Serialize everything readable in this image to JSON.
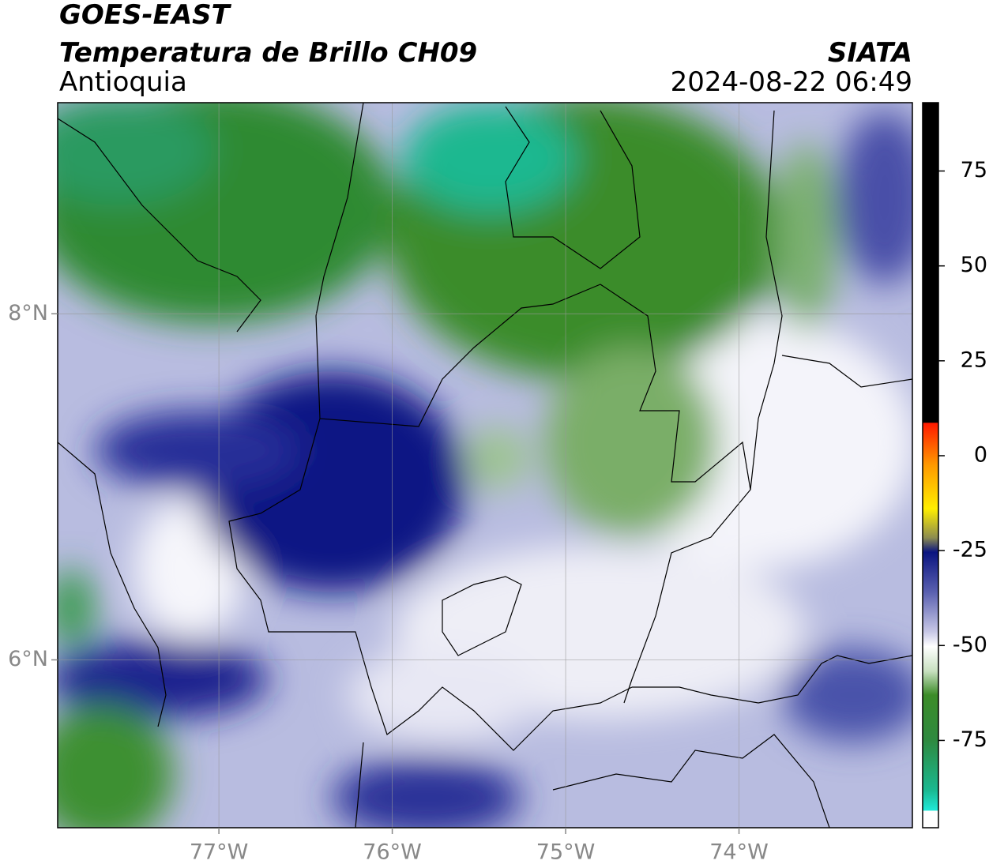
{
  "header": {
    "title": "GOES-EAST",
    "subtitle": "Temperatura de Brillo CH09",
    "region": "Antioquia",
    "source": "SIATA",
    "datetime": "2024-08-22 06:49"
  },
  "map": {
    "xlim": [
      -77.93,
      -73.0
    ],
    "ylim": [
      5.03,
      9.22
    ],
    "xticks": [
      {
        "value": -77,
        "label": "77°W"
      },
      {
        "value": -76,
        "label": "76°W"
      },
      {
        "value": -75,
        "label": "75°W"
      },
      {
        "value": -74,
        "label": "74°W"
      }
    ],
    "yticks": [
      {
        "value": 6,
        "label": "6°N"
      },
      {
        "value": 8,
        "label": "8°N"
      }
    ],
    "grid": true
  },
  "colorbar": {
    "lim": [
      -98,
      93
    ],
    "ticks": [
      -75,
      -50,
      -25,
      0,
      25,
      50,
      75
    ]
  }
}
